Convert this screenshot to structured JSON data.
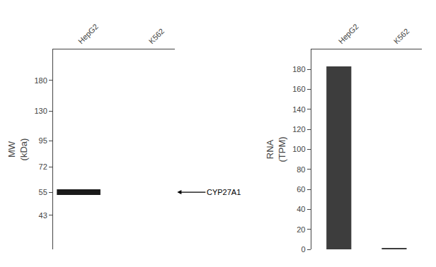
{
  "chart_data": [
    {
      "type": "blot",
      "categories": [
        "HepG2",
        "K562"
      ],
      "values": [
        55,
        null
      ],
      "color": "#1a1a1a",
      "annotation": "CYP27A1",
      "ylabel": "MW\n(kDa)",
      "log": "y",
      "ylim": [
        30,
        250
      ],
      "yticks": [
        180,
        130,
        95,
        72,
        55,
        43
      ],
      "grid": false
    },
    {
      "type": "bar",
      "categories": [
        "HepG2",
        "K562"
      ],
      "values": [
        183,
        1
      ],
      "color": "#3d3d3d",
      "ylabel": "RNA\n(TPM)",
      "ylim": [
        0,
        200
      ],
      "yticks": [
        0,
        20,
        40,
        60,
        80,
        100,
        120,
        140,
        160,
        180
      ],
      "grid": false
    }
  ]
}
